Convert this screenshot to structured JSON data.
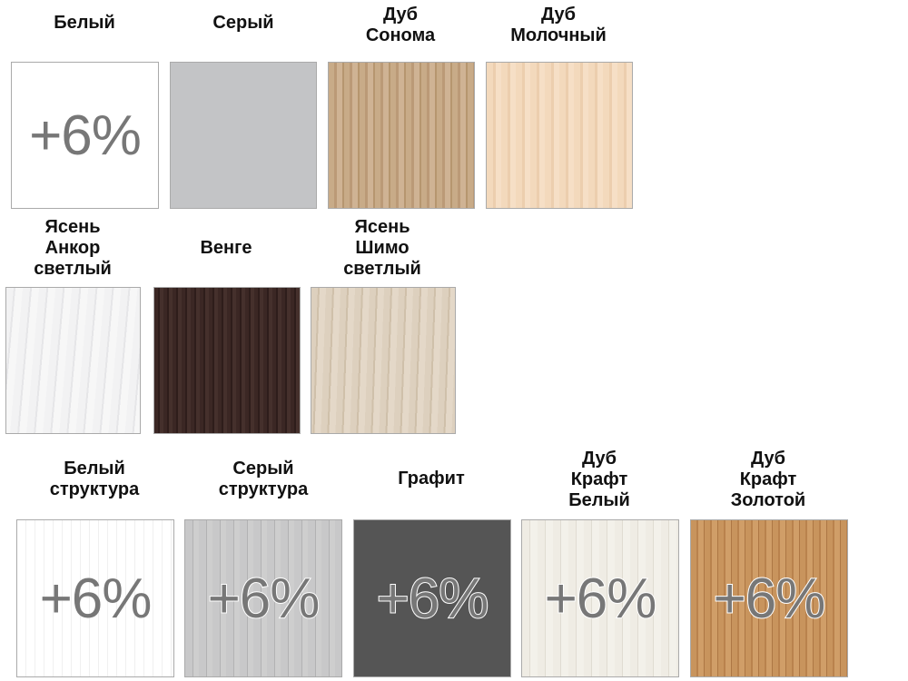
{
  "swatches": [
    {
      "label": "Белый",
      "surcharge": "+6%",
      "color": "#ffffff"
    },
    {
      "label": "Серый",
      "surcharge": "",
      "color": "#c3c4c6"
    },
    {
      "label": "Дуб\nСонома",
      "surcharge": "",
      "color": "#c8ab88"
    },
    {
      "label": "Дуб\nМолочный",
      "surcharge": "",
      "color": "#f3d9bc"
    },
    {
      "label": "Ясень\nАнкор\nсветлый",
      "surcharge": "",
      "color": "#f2f2f3"
    },
    {
      "label": "Венге",
      "surcharge": "",
      "color": "#3b2724"
    },
    {
      "label": "Ясень\nШимо\nсветлый",
      "surcharge": "",
      "color": "#ddd0be"
    },
    {
      "label": "Белый\nструктура",
      "surcharge": "+6%",
      "color": "#ffffff"
    },
    {
      "label": "Серый\nструктура",
      "surcharge": "+6%",
      "color": "#c8c8c9"
    },
    {
      "label": "Графит",
      "surcharge": "+6%",
      "color": "#555555"
    },
    {
      "label": "Дуб\nКрафт\nБелый",
      "surcharge": "+6%",
      "color": "#efece4"
    },
    {
      "label": "Дуб\nКрафт\nЗолотой",
      "surcharge": "+6%",
      "color": "#c8945d"
    }
  ]
}
